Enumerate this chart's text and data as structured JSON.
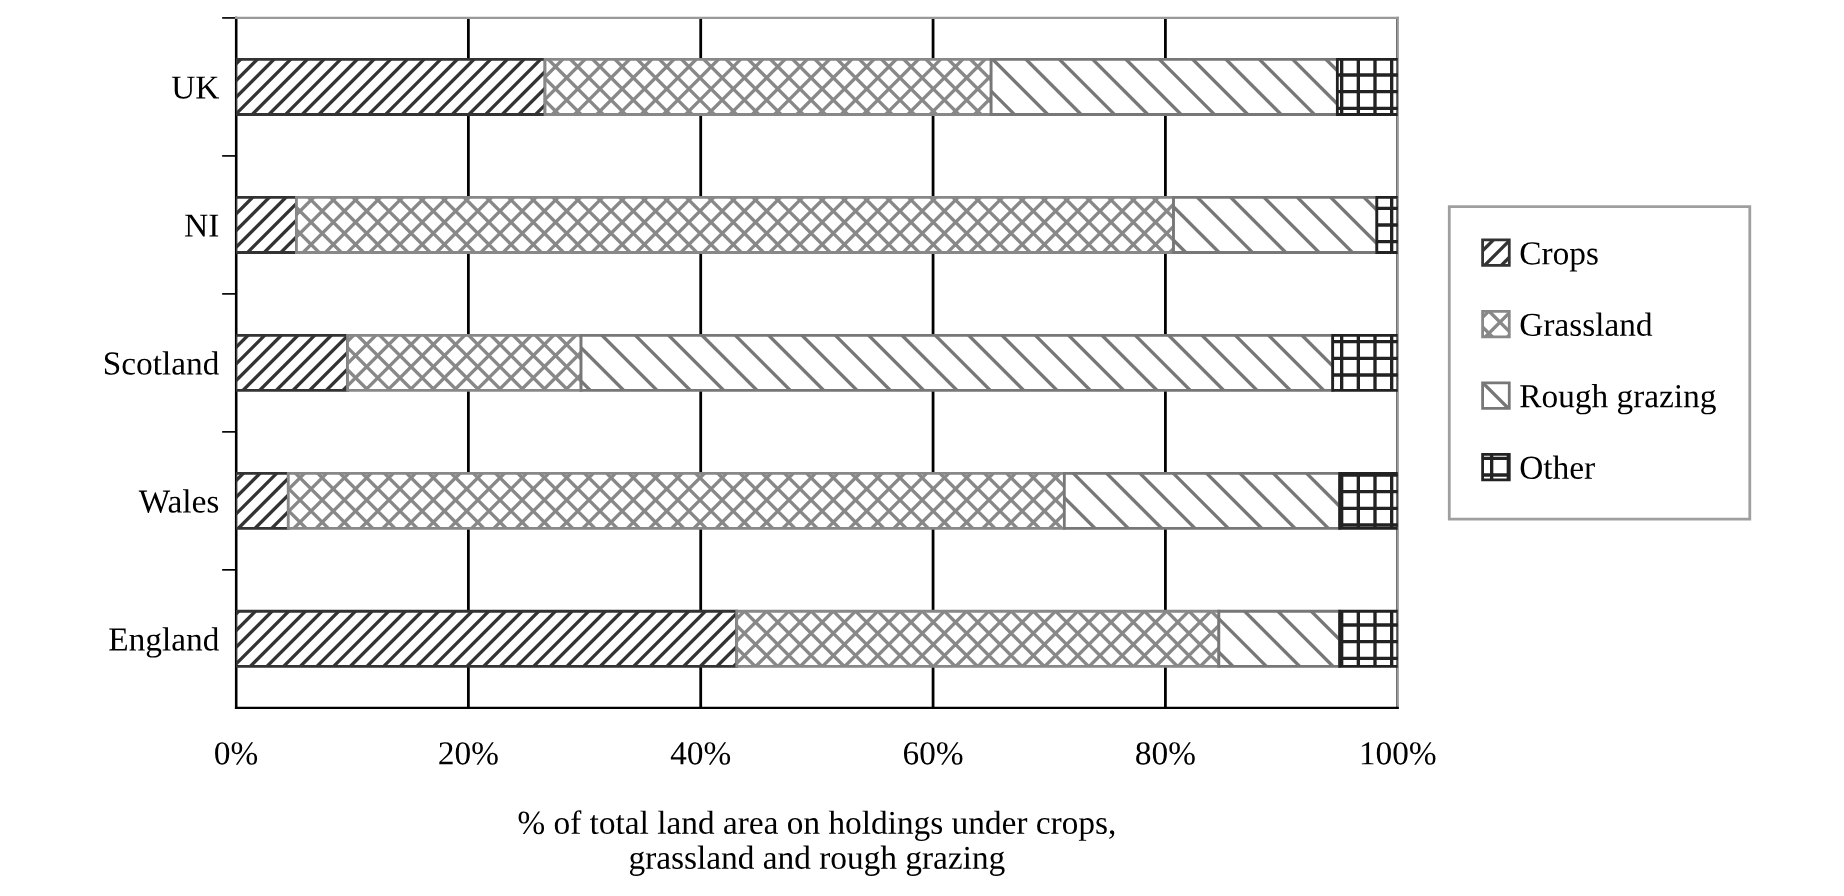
{
  "chart_data": {
    "type": "bar",
    "orientation": "horizontal",
    "stacked": true,
    "categories": [
      "UK",
      "NI",
      "Scotland",
      "Wales",
      "England"
    ],
    "series": [
      {
        "name": "Crops",
        "color": "#333333",
        "values": [
          26.6,
          5.2,
          9.6,
          4.5,
          43.1
        ]
      },
      {
        "name": "Grassland",
        "color": "#888888",
        "values": [
          38.4,
          75.5,
          20.1,
          66.8,
          41.5
        ]
      },
      {
        "name": "Rough grazing",
        "color": "#777777",
        "values": [
          29.8,
          17.5,
          64.7,
          23.7,
          10.4
        ]
      },
      {
        "name": "Other",
        "color": "#222222",
        "values": [
          5.2,
          1.8,
          5.6,
          5.0,
          5.0
        ]
      }
    ],
    "xlim": [
      0,
      100
    ],
    "xticks": [
      {
        "value": 0,
        "label": "0%"
      },
      {
        "value": 20,
        "label": "20%"
      },
      {
        "value": 40,
        "label": "40%"
      },
      {
        "value": 60,
        "label": "60%"
      },
      {
        "value": 80,
        "label": "80%"
      },
      {
        "value": 100,
        "label": "100%"
      }
    ],
    "xlabel": "% of total land area on holdings under crops,\ngrassland and rough grazing",
    "grid": "x",
    "legend": "right"
  }
}
